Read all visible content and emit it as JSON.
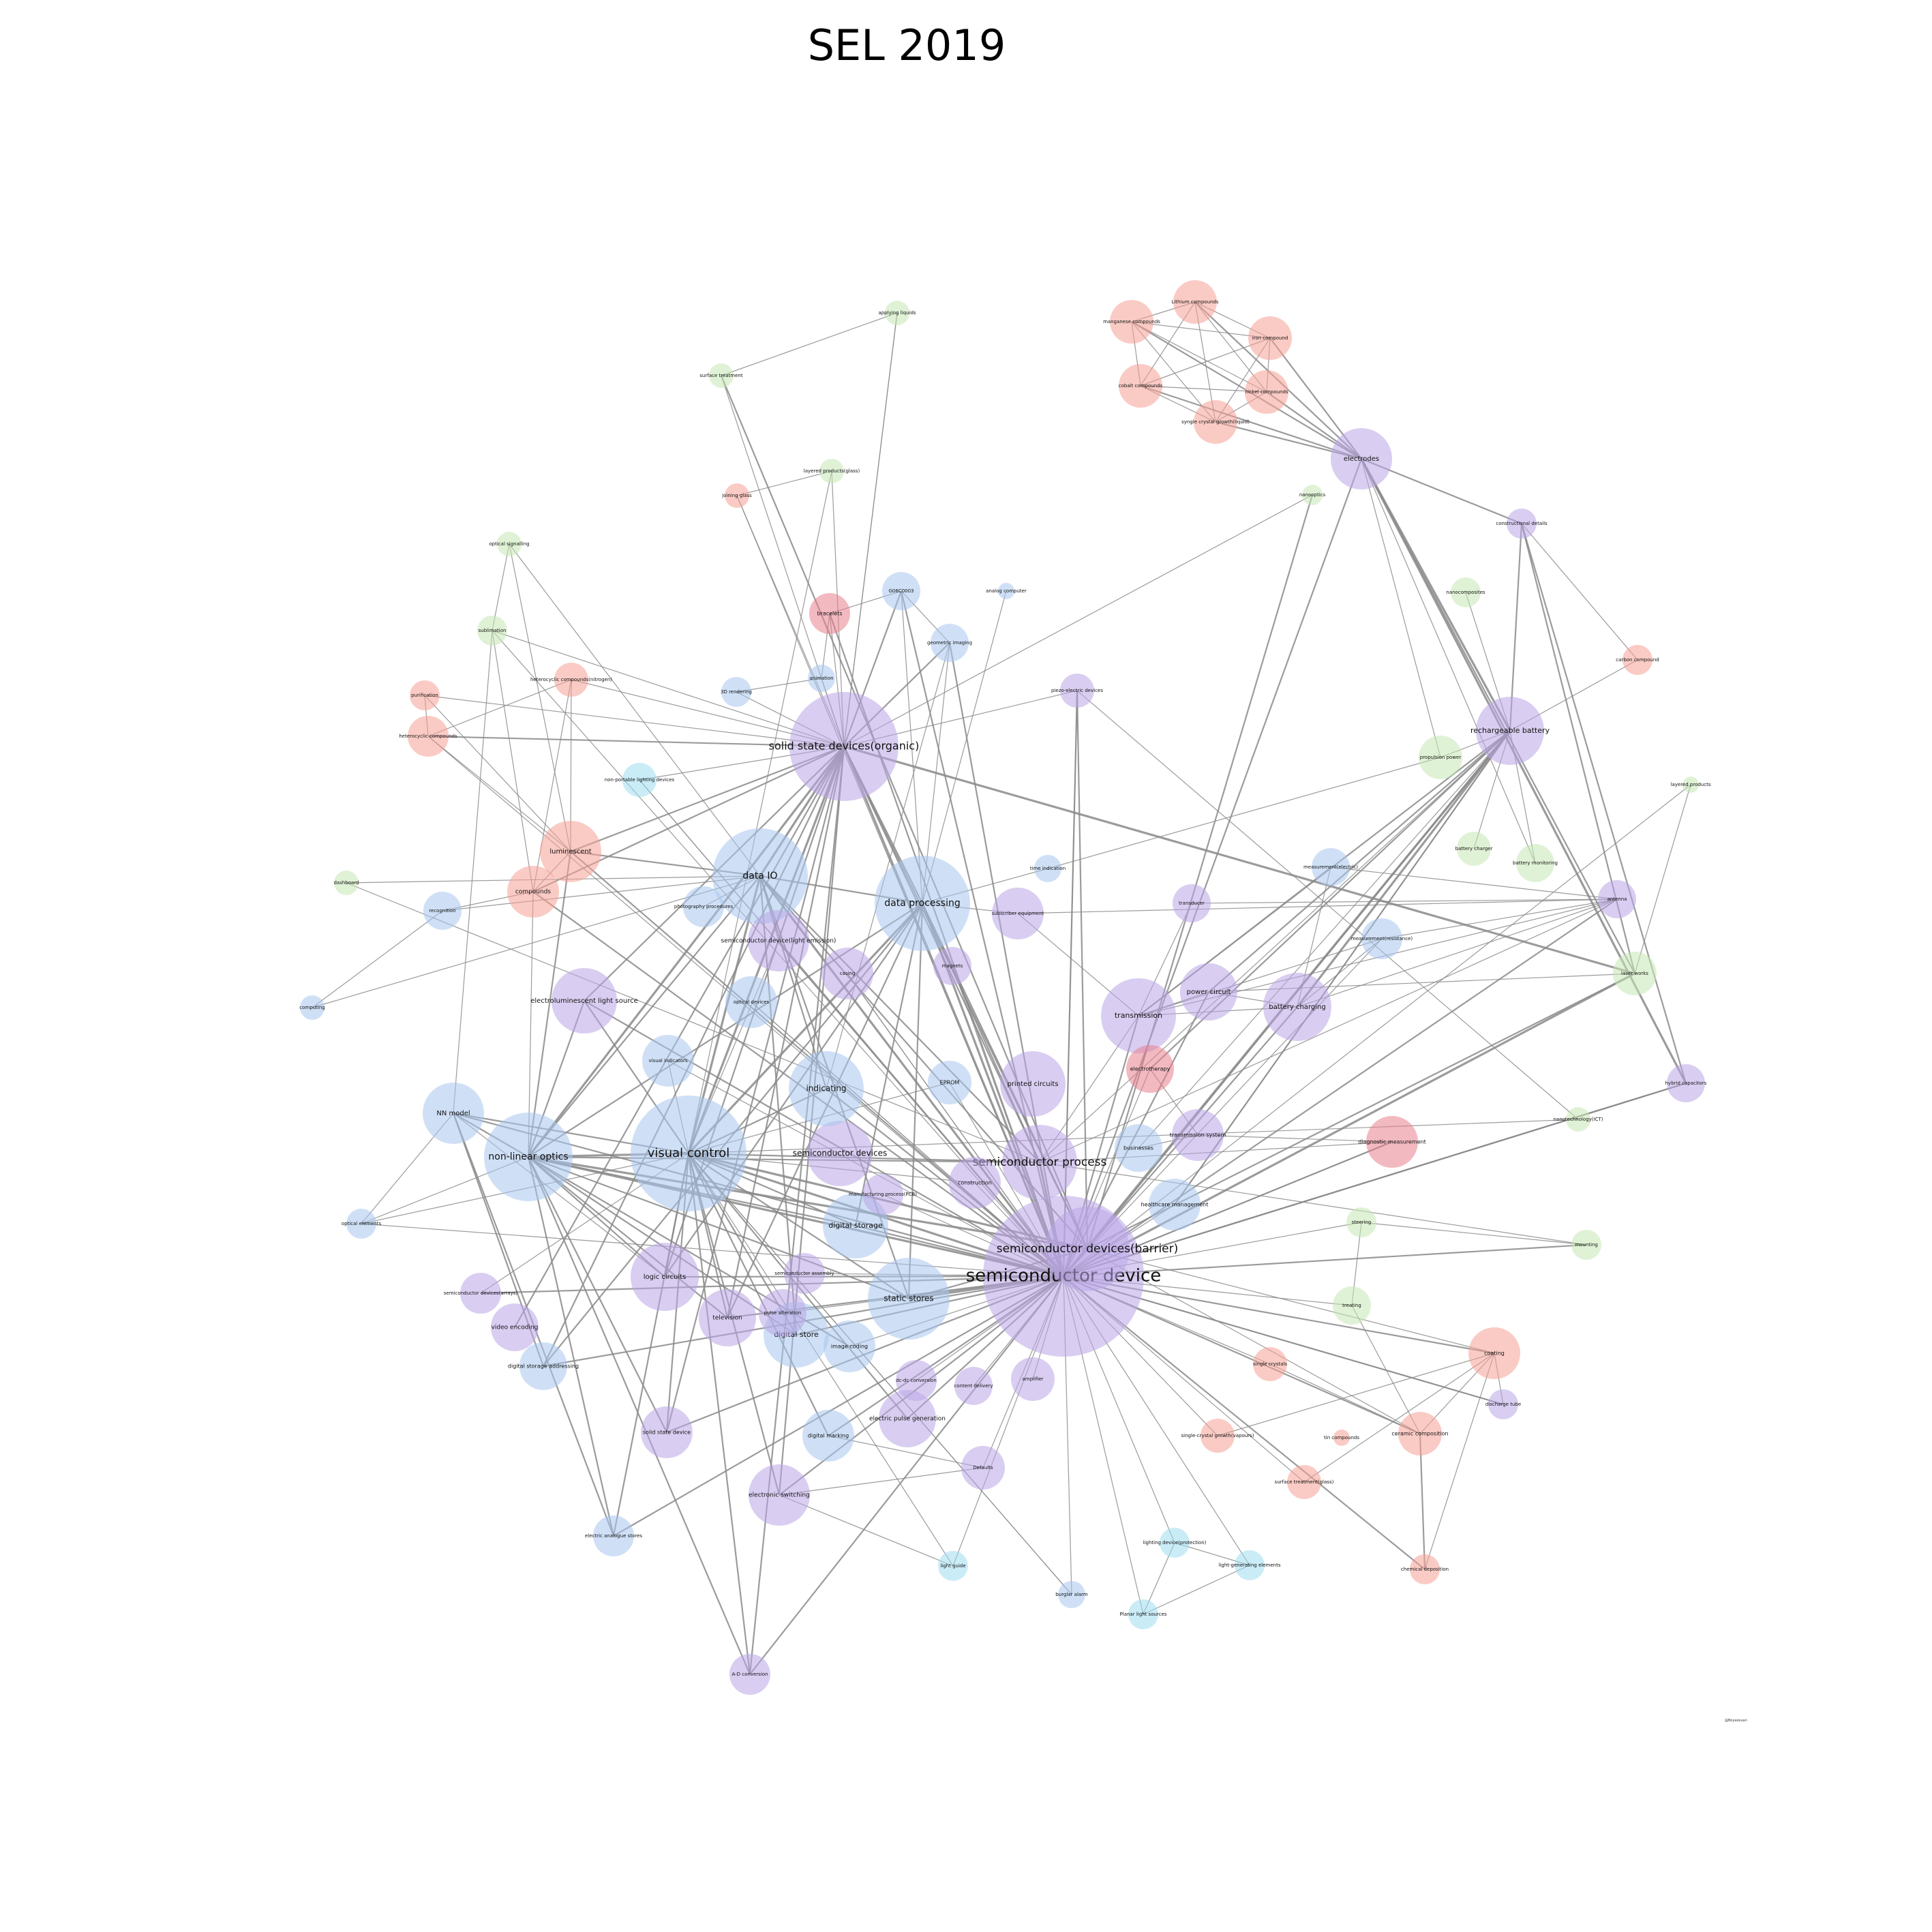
{
  "title": "SEL 2019",
  "credit": "@Boyaoxuan",
  "palette": {
    "purple": "#b9a5e6",
    "blue": "#a8c6ef",
    "red": "#f5a195",
    "green": "#c6e8b4",
    "cyan": "#9fdcee",
    "crimson": "#e8808e",
    "edge": "#8a8a8a"
  },
  "nodes": [
    {
      "id": "sd",
      "label": "semiconductor device",
      "color": "purple"
    },
    {
      "id": "sdb",
      "label": "semiconductor devices(barrier)",
      "color": "purple"
    },
    {
      "id": "sp",
      "label": "semiconductor process",
      "color": "purple"
    },
    {
      "id": "sso",
      "label": "solid state devices(organic)",
      "color": "purple"
    },
    {
      "id": "vc",
      "label": "visual control",
      "color": "blue"
    },
    {
      "id": "nlo",
      "label": "non-linear optics",
      "color": "blue"
    },
    {
      "id": "dio",
      "label": "data IO",
      "color": "blue"
    },
    {
      "id": "dp",
      "label": "data processing",
      "color": "blue"
    },
    {
      "id": "sdv",
      "label": "semiconductor devices",
      "color": "purple"
    },
    {
      "id": "ss",
      "label": "static stores",
      "color": "blue"
    },
    {
      "id": "ds",
      "label": "digital storage",
      "color": "blue"
    },
    {
      "id": "dst",
      "label": "digital store",
      "color": "blue"
    },
    {
      "id": "ind",
      "label": "indicating",
      "color": "blue"
    },
    {
      "id": "nn",
      "label": "NN model",
      "color": "blue"
    },
    {
      "id": "tr",
      "label": "transmission",
      "color": "purple"
    },
    {
      "id": "pc",
      "label": "power circuit",
      "color": "purple"
    },
    {
      "id": "bc",
      "label": "battery charging",
      "color": "purple"
    },
    {
      "id": "rb",
      "label": "rechargeable battery",
      "color": "purple"
    },
    {
      "id": "el",
      "label": "electrodes",
      "color": "purple"
    },
    {
      "id": "lum",
      "label": "luminescent",
      "color": "red"
    },
    {
      "id": "comp",
      "label": "compounds",
      "color": "red"
    },
    {
      "id": "elsrc",
      "label": "electroluminescent light source",
      "color": "purple"
    },
    {
      "id": "prc",
      "label": "printed circuits",
      "color": "purple"
    },
    {
      "id": "lc",
      "label": "logic circuits",
      "color": "purple"
    },
    {
      "id": "tv",
      "label": "television",
      "color": "purple"
    },
    {
      "id": "ves",
      "label": "video encoding",
      "color": "purple"
    },
    {
      "id": "dsa",
      "label": "digital storage addressing",
      "color": "blue"
    },
    {
      "id": "ssd",
      "label": "solid state device",
      "color": "purple"
    },
    {
      "id": "esw",
      "label": "electronic switching",
      "color": "purple"
    },
    {
      "id": "epg",
      "label": "electric pulse generation",
      "color": "purple"
    },
    {
      "id": "dm",
      "label": "digital marking",
      "color": "blue"
    },
    {
      "id": "ic",
      "label": "image coding",
      "color": "blue"
    },
    {
      "id": "dcdc",
      "label": "dc-dc conversion",
      "color": "purple"
    },
    {
      "id": "cd",
      "label": "content delivery",
      "color": "purple"
    },
    {
      "id": "amp",
      "label": "amplifier",
      "color": "purple"
    },
    {
      "id": "def",
      "label": "Defaults",
      "color": "purple"
    },
    {
      "id": "ea",
      "label": "electric analogue stores",
      "color": "blue"
    },
    {
      "id": "adc",
      "label": "A-D conversion",
      "color": "purple"
    },
    {
      "id": "lg",
      "label": "light guide",
      "color": "cyan"
    },
    {
      "id": "ba",
      "label": "burglar alarm",
      "color": "blue"
    },
    {
      "id": "pls",
      "label": "Planar light sources",
      "color": "cyan"
    },
    {
      "id": "ldp",
      "label": "lighting device(protection)",
      "color": "cyan"
    },
    {
      "id": "lge",
      "label": "light-generating elements",
      "color": "cyan"
    },
    {
      "id": "chd",
      "label": "chemical deposition",
      "color": "red"
    },
    {
      "id": "cc",
      "label": "ceramic composition",
      "color": "red"
    },
    {
      "id": "coat",
      "label": "coating",
      "color": "red"
    },
    {
      "id": "dt",
      "label": "discharge tube",
      "color": "purple"
    },
    {
      "id": "scy",
      "label": "single crystals",
      "color": "red"
    },
    {
      "id": "scgv",
      "label": "single-crystal growth(vapours)",
      "color": "red"
    },
    {
      "id": "tin",
      "label": "tin compounds",
      "color": "red"
    },
    {
      "id": "stg",
      "label": "surface treatment(glass)",
      "color": "red"
    },
    {
      "id": "trt",
      "label": "treating",
      "color": "green"
    },
    {
      "id": "mnt",
      "label": "mounting",
      "color": "green"
    },
    {
      "id": "stw",
      "label": "steering",
      "color": "green"
    },
    {
      "id": "hm",
      "label": "healthcare management",
      "color": "blue"
    },
    {
      "id": "bus",
      "label": "businesses",
      "color": "blue"
    },
    {
      "id": "trs",
      "label": "transmission system",
      "color": "purple"
    },
    {
      "id": "dgm",
      "label": "diagnostic measurement",
      "color": "crimson"
    },
    {
      "id": "nt",
      "label": "nanotechnology(ICT)",
      "color": "green"
    },
    {
      "id": "hc",
      "label": "hybrid capacitors",
      "color": "purple"
    },
    {
      "id": "lw",
      "label": "laser works",
      "color": "green"
    },
    {
      "id": "ant",
      "label": "antenna",
      "color": "purple"
    },
    {
      "id": "mr",
      "label": "measurement(resistance)",
      "color": "blue"
    },
    {
      "id": "me",
      "label": "measurement(electric)",
      "color": "blue"
    },
    {
      "id": "td",
      "label": "transducer",
      "color": "purple"
    },
    {
      "id": "ect",
      "label": "electrotherapy",
      "color": "crimson"
    },
    {
      "id": "eprom",
      "label": "EPROM",
      "color": "blue"
    },
    {
      "id": "cons",
      "label": "construction",
      "color": "purple"
    },
    {
      "id": "mpcb",
      "label": "manufacturing process(PCB)",
      "color": "purple"
    },
    {
      "id": "sda",
      "label": "semiconductor assembly",
      "color": "purple"
    },
    {
      "id": "pa",
      "label": "pulse alteration",
      "color": "purple"
    },
    {
      "id": "sdarr",
      "label": "semiconductor devices(arrays)",
      "color": "purple"
    },
    {
      "id": "oe",
      "label": "optical elements",
      "color": "blue"
    },
    {
      "id": "vi",
      "label": "visual indicators",
      "color": "blue"
    },
    {
      "id": "od",
      "label": "optical devices",
      "color": "blue"
    },
    {
      "id": "cas",
      "label": "casing",
      "color": "purple"
    },
    {
      "id": "mag",
      "label": "magnets",
      "color": "purple"
    },
    {
      "id": "sdle",
      "label": "semiconductor device(light emission)",
      "color": "purple"
    },
    {
      "id": "pp",
      "label": "photography procedures",
      "color": "blue"
    },
    {
      "id": "se",
      "label": "subscriber equipment",
      "color": "purple"
    },
    {
      "id": "ti",
      "label": "time indication",
      "color": "blue"
    },
    {
      "id": "rec",
      "label": "recognition",
      "color": "blue"
    },
    {
      "id": "cmp",
      "label": "computing",
      "color": "blue"
    },
    {
      "id": "dash",
      "label": "dashboard",
      "color": "green"
    },
    {
      "id": "npl",
      "label": "non-portable lighting devices",
      "color": "cyan"
    },
    {
      "id": "hcn",
      "label": "heterocyclic compounds(nitrogen)",
      "color": "red"
    },
    {
      "id": "hcc",
      "label": "heterocyclic compounds",
      "color": "red"
    },
    {
      "id": "pur",
      "label": "purification",
      "color": "red"
    },
    {
      "id": "sub",
      "label": "sublimation",
      "color": "green"
    },
    {
      "id": "os",
      "label": "optical signalling",
      "color": "green"
    },
    {
      "id": "r3d",
      "label": "3D rendering",
      "color": "blue"
    },
    {
      "id": "anim",
      "label": "animation",
      "color": "blue"
    },
    {
      "id": "brac",
      "label": "bracelets",
      "color": "crimson"
    },
    {
      "id": "g06",
      "label": "G06C0003",
      "color": "blue"
    },
    {
      "id": "gi",
      "label": "geometric imaging",
      "color": "blue"
    },
    {
      "id": "ac",
      "label": "analog computer",
      "color": "blue"
    },
    {
      "id": "pzd",
      "label": "piezo-electric devices",
      "color": "purple"
    },
    {
      "id": "jg",
      "label": "joining glass",
      "color": "red"
    },
    {
      "id": "lpg",
      "label": "layered products(glass)",
      "color": "green"
    },
    {
      "id": "st",
      "label": "surface treatment",
      "color": "green"
    },
    {
      "id": "al",
      "label": "applying liquids",
      "color": "green"
    },
    {
      "id": "nano",
      "label": "nanooptics",
      "color": "green"
    },
    {
      "id": "mnc",
      "label": "manganese compounds",
      "color": "red"
    },
    {
      "id": "lic",
      "label": "Lithium compounds",
      "color": "red"
    },
    {
      "id": "irc",
      "label": "iron compound",
      "color": "red"
    },
    {
      "id": "coc",
      "label": "cobalt compounds",
      "color": "red"
    },
    {
      "id": "nic",
      "label": "nickel compounds",
      "color": "red"
    },
    {
      "id": "scgl",
      "label": "syngle crystal growth(liquid)",
      "color": "red"
    },
    {
      "id": "cdt",
      "label": "constructional details",
      "color": "purple"
    },
    {
      "id": "ncp",
      "label": "nanocomposites",
      "color": "green"
    },
    {
      "id": "cbc",
      "label": "carbon compound",
      "color": "red"
    },
    {
      "id": "pp2",
      "label": "propulsion power",
      "color": "green"
    },
    {
      "id": "lp",
      "label": "layered products",
      "color": "green"
    },
    {
      "id": "bch",
      "label": "battery charger",
      "color": "green"
    },
    {
      "id": "bm",
      "label": "battery monitoring",
      "color": "green"
    }
  ]
}
